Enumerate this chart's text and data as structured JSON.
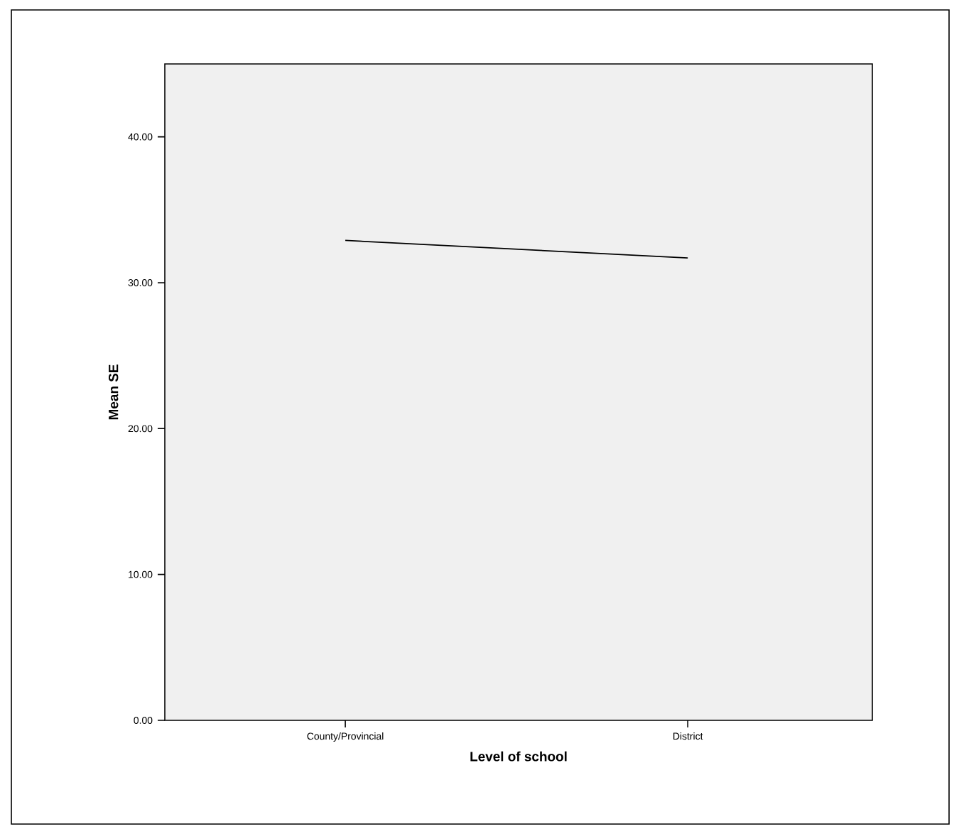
{
  "chart_data": {
    "type": "line",
    "xlabel": "Level of school",
    "ylabel": "Mean SE",
    "categories": [
      "County/Provincial",
      "District"
    ],
    "series": [
      {
        "color": "#000000",
        "values": [
          32.9,
          31.7
        ]
      }
    ],
    "ylim": [
      0,
      45
    ],
    "yticks": [
      {
        "value": 0,
        "label": "0.00"
      },
      {
        "value": 10,
        "label": "10.00"
      },
      {
        "value": 20,
        "label": "20.00"
      },
      {
        "value": 30,
        "label": "30.00"
      },
      {
        "value": 40,
        "label": "40.00"
      }
    ],
    "grid": false,
    "marker": "none",
    "line_style": "solid"
  }
}
